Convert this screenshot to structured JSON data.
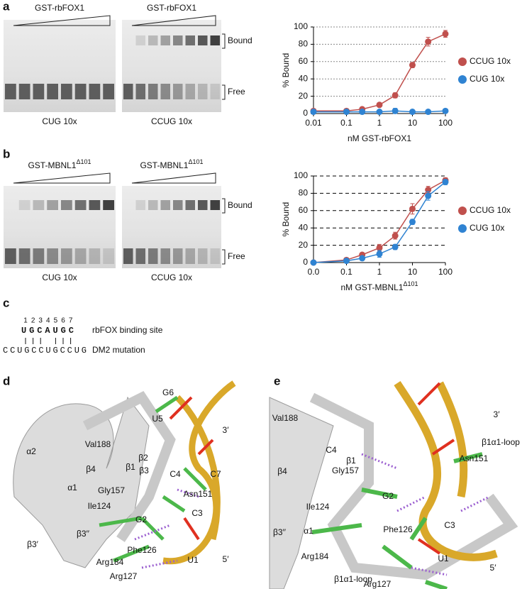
{
  "panel_labels": [
    "a",
    "b",
    "c",
    "d",
    "e"
  ],
  "gels": [
    {
      "titles": [
        "GST-rbFOX1",
        "GST-rbFOX1"
      ],
      "labels": [
        "CUG 10x",
        "CCUG 10x"
      ],
      "bands": [
        "Bound",
        "Free"
      ]
    },
    {
      "titles": [
        "GST-MBNL1",
        "GST-MBNL1"
      ],
      "superscript": "Δ101",
      "labels": [
        "CUG 10x",
        "CCUG 10x"
      ],
      "bands": [
        "Bound",
        "Free"
      ]
    }
  ],
  "chart_data": [
    {
      "type": "line",
      "xscale": "log",
      "x": [
        0.01,
        0.1,
        0.3,
        1,
        3,
        10,
        30,
        100
      ],
      "xlim": [
        0.01,
        100
      ],
      "xticks": [
        0.01,
        0.1,
        1,
        10,
        100
      ],
      "ylim": [
        0,
        100
      ],
      "yticks": [
        0,
        20,
        40,
        60,
        80,
        100
      ],
      "grid": true,
      "grid_style": "dotted",
      "grid_color": "#888888",
      "x_label": "nM GST-rbFOX1",
      "y_label": "% Bound",
      "series": [
        {
          "name": "CCUG 10x",
          "color": "#c0504d",
          "values": [
            3,
            3,
            5,
            10,
            21,
            56,
            83,
            92
          ],
          "errors": [
            1,
            1,
            1,
            2,
            3,
            3,
            5,
            4
          ]
        },
        {
          "name": "CUG 10x",
          "color": "#2f83d2",
          "values": [
            2,
            2,
            2,
            2,
            3,
            2,
            2,
            3
          ],
          "errors": [
            1,
            1,
            1,
            1,
            3,
            2,
            1,
            2
          ]
        }
      ]
    },
    {
      "type": "line",
      "xscale": "log",
      "x": [
        0.01,
        0.1,
        0.3,
        1,
        3,
        10,
        30,
        100
      ],
      "xlim": [
        0.01,
        100
      ],
      "xticks": [
        {
          "value": 0.01,
          "label": "0.0"
        },
        0.1,
        1,
        10,
        100
      ],
      "ylim": [
        0,
        100
      ],
      "yticks": [
        0,
        20,
        40,
        60,
        80,
        100
      ],
      "grid": true,
      "grid_style": "dashed",
      "grid_color": "#000000",
      "x_label": "nM GST-MBNL1",
      "x_label_sup": "Δ101",
      "y_label": "% Bound",
      "series": [
        {
          "name": "CCUG 10x",
          "color": "#c0504d",
          "values": [
            0,
            3,
            9,
            17,
            31,
            62,
            84,
            95
          ],
          "errors": [
            1,
            1,
            2,
            4,
            4,
            6,
            4,
            3
          ]
        },
        {
          "name": "CUG 10x",
          "color": "#2f83d2",
          "values": [
            0,
            2,
            5,
            10,
            18,
            47,
            77,
            93
          ],
          "errors": [
            0,
            1,
            2,
            4,
            3,
            3,
            5,
            3
          ]
        }
      ]
    }
  ],
  "panel_c": {
    "positions": [
      "1",
      "2",
      "3",
      "4",
      "5",
      "6",
      "7"
    ],
    "site": "UGCAUGC",
    "mutation": "CCUGCCUGCCUG",
    "site_label": "rbFOX binding site",
    "mutation_label": "DM2 mutation"
  },
  "panel_d": {
    "labels": [
      "G6",
      "U5",
      "3′",
      "α2",
      "Val188",
      "β2",
      "β1",
      "β4",
      "β3",
      "C4",
      "C7",
      "Gly157",
      "α1",
      "Ile124",
      "Asn151",
      "C3",
      "G2",
      "β3′′",
      "β3′",
      "Phe126",
      "Arg184",
      "U1",
      "5′",
      "Arg127"
    ]
  },
  "panel_e": {
    "labels": [
      "3′",
      "Val188",
      "β1α1-loop",
      "C4",
      "β1",
      "Asn151",
      "Gly157",
      "β4",
      "Ile124",
      "G2",
      "C3",
      "β3′′",
      "α1",
      "Phe126",
      "Arg184",
      "U1",
      "5′",
      "β1α1-loop",
      "Arg127"
    ]
  }
}
